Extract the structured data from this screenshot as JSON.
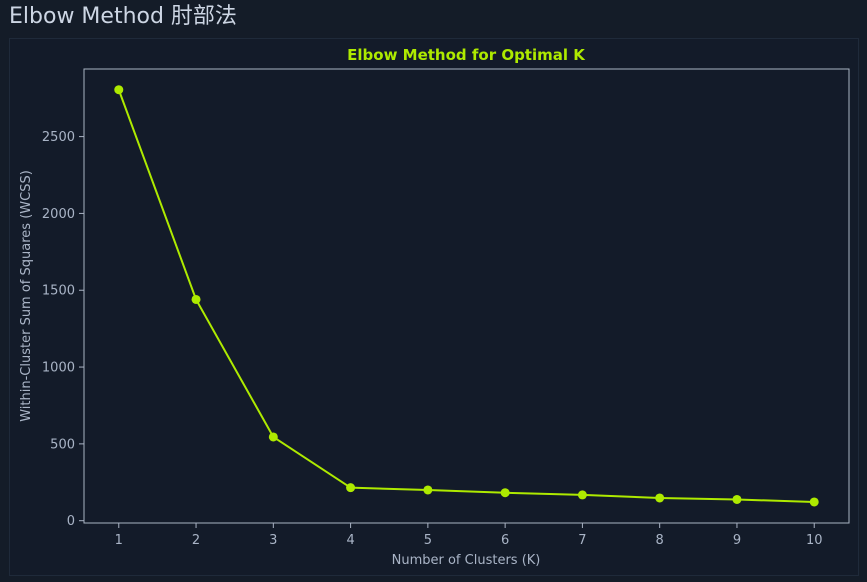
{
  "header": {
    "title": "Elbow Method  肘部法"
  },
  "colors": {
    "accent": "#aeea00",
    "background": "#131b29",
    "axis": "#aab4c4",
    "text": "#a9b4c6"
  },
  "chart_data": {
    "type": "line",
    "title": "Elbow Method for Optimal K",
    "xlabel": "Number of Clusters (K)",
    "ylabel": "Within-Cluster Sum of Squares (WCSS)",
    "x": [
      1,
      2,
      3,
      4,
      5,
      6,
      7,
      8,
      9,
      10
    ],
    "x_ticks": [
      1,
      2,
      3,
      4,
      5,
      6,
      7,
      8,
      9,
      10
    ],
    "y_ticks": [
      0,
      500,
      1000,
      1500,
      2000,
      2500
    ],
    "xlim": [
      0.55,
      10.45
    ],
    "ylim": [
      -15,
      2940
    ],
    "grid": false,
    "series": [
      {
        "values": [
          2805,
          1440,
          545,
          215,
          200,
          182,
          168,
          148,
          138,
          122
        ],
        "color": "#aeea00",
        "marker": "circle"
      }
    ]
  }
}
